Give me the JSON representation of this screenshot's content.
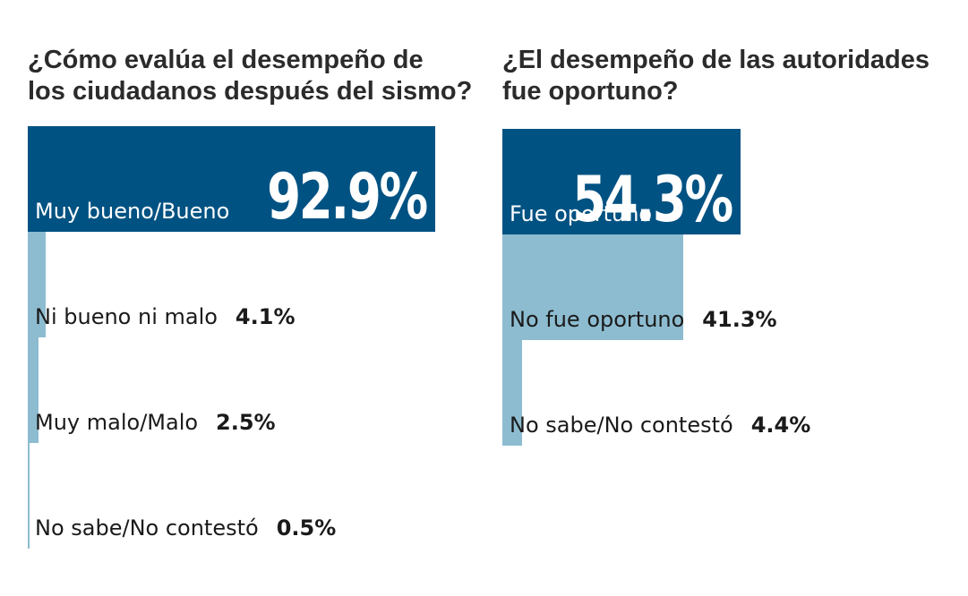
{
  "colors": {
    "major": "#005282",
    "minor": "#8dbcd0"
  },
  "chart_data": [
    {
      "type": "bar",
      "orientation": "horizontal",
      "title": "¿Cómo evalúa el desempeño de los ciudadanos después del sismo?",
      "title_lines": [
        "¿Cómo evalúa el desempeño de",
        "los ciudadanos después del sismo?"
      ],
      "categories": [
        "Muy bueno/Bueno",
        "Ni bueno ni malo",
        "Muy malo/Malo",
        "No sabe/No contestó"
      ],
      "values": [
        92.9,
        4.1,
        2.5,
        0.5
      ],
      "value_labels": [
        "92.9%",
        "4.1%",
        "2.5%",
        "0.5%"
      ],
      "unit": "%",
      "xlim": [
        0,
        100
      ]
    },
    {
      "type": "bar",
      "orientation": "horizontal",
      "title": "¿El desempeño de las autoridades fue oportuno?",
      "title_lines": [
        "¿El desempeño de las autoridades",
        "fue oportuno?"
      ],
      "categories": [
        "Fue oportuno",
        "No fue oportuno",
        "No sabe/No contestó"
      ],
      "values": [
        54.3,
        41.3,
        4.4
      ],
      "value_labels": [
        "54.3%",
        "41.3%",
        "4.4%"
      ],
      "unit": "%",
      "xlim": [
        0,
        100
      ]
    }
  ]
}
